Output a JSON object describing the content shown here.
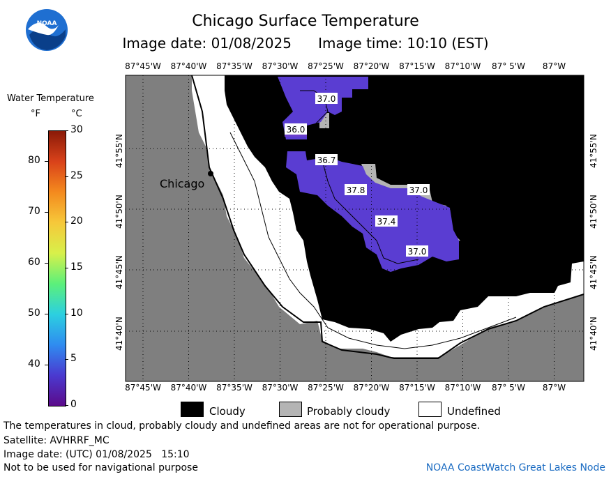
{
  "header": {
    "title": "Chicago Surface Temperature",
    "image_date_label": "Image date: 01/08/2025",
    "image_time_label": "Image time: 10:10 (EST)"
  },
  "logo": {
    "text": "NOAA",
    "icon": "noaa-logo-icon"
  },
  "legend": {
    "title": "Water Temperature",
    "unit_f": "°F",
    "unit_c": "°C",
    "f_ticks": [
      "80",
      "70",
      "60",
      "50",
      "40"
    ],
    "c_ticks": [
      "30",
      "25",
      "20",
      "15",
      "10",
      "5",
      "0"
    ],
    "colorbar_colors": [
      "#5b0a8a",
      "#4a3ad0",
      "#2f8cf0",
      "#2cd0e0",
      "#5cf07a",
      "#d8f04a",
      "#f6c83a",
      "#f48a1e",
      "#d9421a",
      "#8a1a08"
    ]
  },
  "map": {
    "lon_labels": [
      "87°45'W",
      "87°40'W",
      "87°35'W",
      "87°30'W",
      "87°25'W",
      "87°20'W",
      "87°15'W",
      "87°10'W",
      "87° 5'W",
      "87°W"
    ],
    "lat_labels": [
      "41°55'N",
      "41°50'N",
      "41°45'N",
      "41°40'N"
    ],
    "city_label": "Chicago",
    "temperature_labels": [
      "37.0",
      "36.0",
      "36.7",
      "37.8",
      "37.0",
      "37.4",
      "37.0"
    ],
    "colors": {
      "land": "#7f7f7f",
      "cloudy": "#000000",
      "probably_cloudy": "#b4b4b4",
      "undefined": "#ffffff",
      "water_37": "#5a3dd2",
      "water_36": "#6b3ecc"
    }
  },
  "categories": {
    "cloudy": "Cloudy",
    "probably_cloudy": "Probably cloudy",
    "undefined": "Undefined"
  },
  "footer": {
    "disclaimer": "The temperatures in cloud, probably cloudy and undefined areas are not for operational purpose.",
    "satellite": "Satellite: AVHRRF_MC",
    "utc_date": "Image date: (UTC) 01/08/2025   15:10",
    "nav_warning": "Not to be used for navigational purpose",
    "credit": "NOAA CoastWatch Great Lakes Node"
  }
}
